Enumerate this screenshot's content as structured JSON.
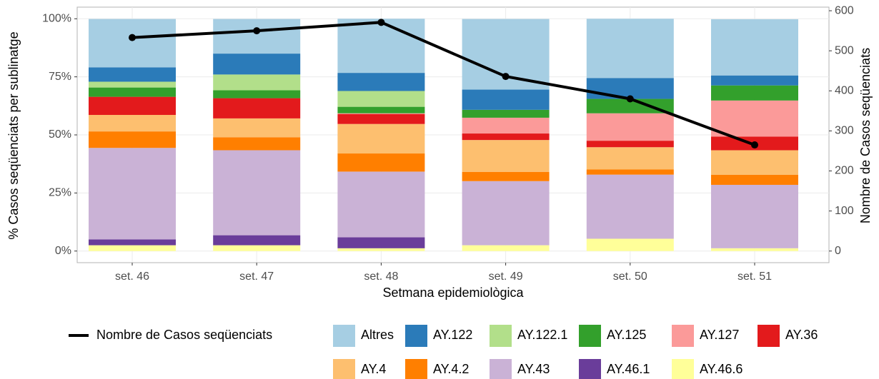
{
  "chart_data": {
    "type": "bar",
    "stacked": true,
    "x_label": "Setmana epidemiològica",
    "y_label": "% Casos seqüenciats per sublinatge",
    "y2_label": "Nombre de Casos seqüenciats",
    "categories": [
      "set. 46",
      "set. 47",
      "set. 48",
      "set. 49",
      "set. 50",
      "set. 51"
    ],
    "ylim": [
      -5,
      105
    ],
    "yticks": [
      {
        "value": 0,
        "label": "0%"
      },
      {
        "value": 25,
        "label": "25%"
      },
      {
        "value": 50,
        "label": "50%"
      },
      {
        "value": 75,
        "label": "75%"
      },
      {
        "value": 100,
        "label": "100%"
      }
    ],
    "y2lim": [
      -29,
      609
    ],
    "y2ticks": [
      0,
      100,
      200,
      300,
      400,
      500,
      600
    ],
    "grid": true,
    "legend": "bottom",
    "series": [
      {
        "name": "Altres",
        "color": "#a6cee3",
        "values": [
          20.8,
          14.9,
          23.3,
          30.4,
          25.5,
          24.2
        ]
      },
      {
        "name": "AY.122",
        "color": "#2b7bb9",
        "values": [
          6.2,
          9.0,
          7.8,
          8.7,
          9.0,
          4.3
        ]
      },
      {
        "name": "AY.122.1",
        "color": "#b2df8a",
        "values": [
          2.5,
          6.8,
          6.8,
          0,
          0,
          0
        ]
      },
      {
        "name": "AY.125",
        "color": "#33a02c",
        "values": [
          4.0,
          3.4,
          2.8,
          3.4,
          6.2,
          6.5
        ]
      },
      {
        "name": "AY.127",
        "color": "#fb9a99",
        "values": [
          0,
          0,
          0.3,
          6.8,
          11.8,
          15.5
        ]
      },
      {
        "name": "AY.36",
        "color": "#e31a1c",
        "values": [
          7.8,
          8.7,
          4.3,
          2.8,
          2.8,
          5.9
        ]
      },
      {
        "name": "AY.4",
        "color": "#fdbf6f",
        "values": [
          7.1,
          8.1,
          12.7,
          13.7,
          9.6,
          10.6
        ]
      },
      {
        "name": "AY.4.2",
        "color": "#ff7f00",
        "values": [
          7.1,
          5.6,
          7.8,
          4.0,
          2.2,
          4.3
        ]
      },
      {
        "name": "AY.43",
        "color": "#cab2d6",
        "values": [
          39.4,
          36.6,
          28.3,
          27.6,
          27.6,
          27.3
        ]
      },
      {
        "name": "AY.46.1",
        "color": "#6a3d9a",
        "values": [
          2.5,
          4.3,
          4.7,
          0,
          0,
          0
        ]
      },
      {
        "name": "AY.46.6",
        "color": "#ffff99",
        "values": [
          2.5,
          2.5,
          1.2,
          2.5,
          5.3,
          1.2
        ]
      },
      {
        "name": "Nombre de Casos seqüenciats",
        "type": "line",
        "axis": "y2",
        "color": "#000000",
        "values": [
          533,
          550,
          571,
          436,
          380,
          265
        ]
      }
    ]
  }
}
